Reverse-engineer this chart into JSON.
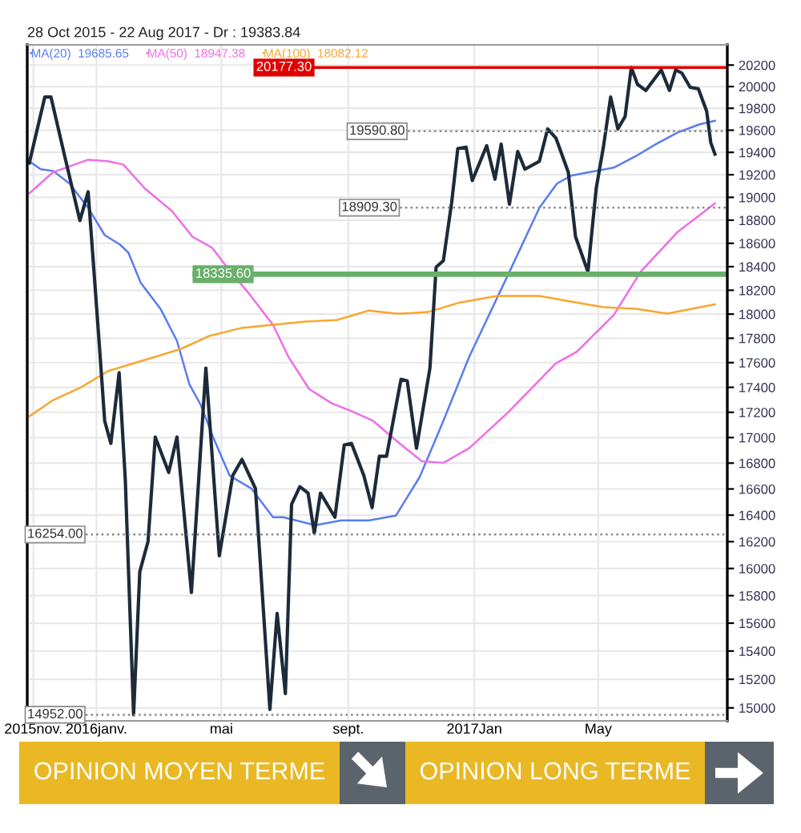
{
  "chart_data": {
    "type": "line",
    "title": "28 Oct 2015 - 22 Aug 2017 - Dr : 19383.84",
    "annotations": [
      "OPINION MOYEN TERME",
      "OPINION LONG TERME"
    ],
    "log": true,
    "grid": true,
    "legend": "top left",
    "tick_labels": "xy",
    "xlim": [
      "2015-10-26",
      "2017-09-03"
    ],
    "xticks": [
      {
        "value": "2015-11-01",
        "label": "2015nov."
      },
      {
        "value": "2016-01-01",
        "label": "2016janv."
      },
      {
        "value": "2016-05-01",
        "label": "mai"
      },
      {
        "value": "2016-09-01",
        "label": "sept."
      },
      {
        "value": "2017-01-01",
        "label": "2017Jan"
      },
      {
        "value": "2017-05-01",
        "label": "May"
      }
    ],
    "ylim": [
      14910,
      20390
    ],
    "yticks": [
      15000,
      15200,
      15400,
      15600,
      15800,
      16000,
      16200,
      16400,
      16600,
      16800,
      17000,
      17200,
      17400,
      17600,
      17800,
      18000,
      18200,
      18400,
      18600,
      18800,
      19000,
      19200,
      19400,
      19600,
      19800,
      20000,
      20200
    ],
    "ref_lines": [
      {
        "axis": "y",
        "value": 20177.3,
        "label": "20177.30",
        "color": "#e00000",
        "line_style": "solid"
      },
      {
        "axis": "y",
        "value": 19590.8,
        "label": "19590.80",
        "color": "#888888",
        "line_style": "dotted"
      },
      {
        "axis": "y",
        "value": 18909.3,
        "label": "18909.30",
        "color": "#888888",
        "line_style": "dotted"
      },
      {
        "axis": "y",
        "value": 18335.6,
        "label": "18335.60",
        "color": "#6aaf6a",
        "line_style": "solid"
      },
      {
        "axis": "y",
        "value": 16254.0,
        "label": "16254.00",
        "color": "#888888",
        "line_style": "dotted"
      },
      {
        "axis": "y",
        "value": 14952.0,
        "label": "14952.00",
        "color": "#888888",
        "line_style": "dotted"
      }
    ],
    "series": [
      {
        "color": "#1c2b3a",
        "x": [
          "2015-10-28",
          "2015-11-12",
          "2015-11-18",
          "2015-12-01",
          "2015-12-16",
          "2015-12-24",
          "2016-01-04",
          "2016-01-09",
          "2016-01-15",
          "2016-01-23",
          "2016-01-29",
          "2016-02-06",
          "2016-02-12",
          "2016-02-20",
          "2016-02-27",
          "2016-03-11",
          "2016-03-19",
          "2016-04-02",
          "2016-04-16",
          "2016-04-29",
          "2016-05-12",
          "2016-05-21",
          "2016-06-03",
          "2016-06-17",
          "2016-06-24",
          "2016-07-02",
          "2016-07-08",
          "2016-07-16",
          "2016-07-24",
          "2016-07-30",
          "2016-08-05",
          "2016-08-19",
          "2016-08-28",
          "2016-09-04",
          "2016-09-16",
          "2016-09-24",
          "2016-10-01",
          "2016-10-08",
          "2016-10-22",
          "2016-10-28",
          "2016-11-06",
          "2016-11-19",
          "2016-11-25",
          "2016-12-02",
          "2016-12-10",
          "2016-12-16",
          "2016-12-24",
          "2016-12-30",
          "2017-01-13",
          "2017-01-21",
          "2017-01-27",
          "2017-02-04",
          "2017-02-12",
          "2017-02-19",
          "2017-03-05",
          "2017-03-13",
          "2017-03-21",
          "2017-04-02",
          "2017-04-09",
          "2017-04-21",
          "2017-04-29",
          "2017-05-06",
          "2017-05-13",
          "2017-05-20",
          "2017-05-27",
          "2017-06-02",
          "2017-06-08",
          "2017-06-16",
          "2017-07-01",
          "2017-07-09",
          "2017-07-15",
          "2017-07-21",
          "2017-07-29",
          "2017-08-06",
          "2017-08-14",
          "2017-08-18",
          "2017-08-22"
        ],
        "values": [
          19305,
          19903,
          19903,
          19377,
          18797,
          19049,
          17725,
          17132,
          16954,
          17518,
          16667,
          14952,
          15976,
          16202,
          17004,
          16728,
          17004,
          15823,
          17556,
          16095,
          16703,
          16829,
          16604,
          14990,
          15671,
          15100,
          16483,
          16618,
          16568,
          16263,
          16568,
          16384,
          16942,
          16954,
          16703,
          16457,
          16853,
          16853,
          17465,
          17452,
          16916,
          17556,
          18396,
          18451,
          18952,
          19434,
          19447,
          19148,
          19460,
          19161,
          19474,
          18940,
          19408,
          19249,
          19320,
          19612,
          19529,
          19222,
          18657,
          18356,
          19077,
          19447,
          19903,
          19612,
          19724,
          20177,
          20021,
          19964,
          20155,
          19964,
          20155,
          20125,
          19993,
          19979,
          19774,
          19487,
          19384
        ]
      },
      {
        "name": "MA(20)  19685.65",
        "color": "#5a7cf0",
        "x": [
          "2015-10-28",
          "2015-11-08",
          "2015-11-20",
          "2015-12-06",
          "2015-12-24",
          "2016-01-09",
          "2016-01-24",
          "2016-02-01",
          "2016-02-13",
          "2016-03-03",
          "2016-03-19",
          "2016-03-31",
          "2016-04-11",
          "2016-04-23",
          "2016-05-09",
          "2016-05-30",
          "2016-06-20",
          "2016-06-30",
          "2016-07-31",
          "2016-08-25",
          "2016-09-21",
          "2016-10-17",
          "2016-11-09",
          "2016-12-02",
          "2016-12-27",
          "2017-02-04",
          "2017-03-05",
          "2017-03-22",
          "2017-04-05",
          "2017-04-22",
          "2017-05-16",
          "2017-06-06",
          "2017-06-26",
          "2017-07-17",
          "2017-08-07",
          "2017-08-22"
        ],
        "values": [
          19320,
          19249,
          19234,
          19121,
          18908,
          18671,
          18588,
          18519,
          18261,
          18045,
          17779,
          17426,
          17259,
          17004,
          16703,
          16604,
          16384,
          16384,
          16324,
          16360,
          16360,
          16396,
          16691,
          17132,
          17647,
          18356,
          18908,
          19121,
          19192,
          19222,
          19263,
          19364,
          19474,
          19580,
          19653,
          19686
        ]
      },
      {
        "name": "MA(50)  18947.38",
        "color": "#ee6ee8",
        "x": [
          "2015-10-28",
          "2015-11-20",
          "2015-12-24",
          "2016-01-12",
          "2016-01-27",
          "2016-02-17",
          "2016-03-14",
          "2016-04-03",
          "2016-04-22",
          "2016-05-04",
          "2016-05-27",
          "2016-06-20",
          "2016-07-05",
          "2016-07-25",
          "2016-08-16",
          "2016-09-05",
          "2016-09-25",
          "2016-10-17",
          "2016-11-11",
          "2016-12-02",
          "2016-12-27",
          "2017-02-02",
          "2017-03-21",
          "2017-04-10",
          "2017-05-16",
          "2017-06-11",
          "2017-07-17",
          "2017-08-22"
        ],
        "values": [
          19035,
          19222,
          19334,
          19320,
          19291,
          19077,
          18881,
          18657,
          18562,
          18423,
          18180,
          17911,
          17647,
          17386,
          17271,
          17206,
          17132,
          16978,
          16815,
          16802,
          16916,
          17194,
          17594,
          17687,
          17992,
          18356,
          18699,
          18947
        ]
      },
      {
        "name": "MA(100)  18082.12",
        "color": "#f8a630",
        "x": [
          "2015-10-28",
          "2015-11-20",
          "2015-12-17",
          "2016-01-12",
          "2016-02-01",
          "2016-02-27",
          "2016-03-23",
          "2016-04-19",
          "2016-05-20",
          "2016-06-20",
          "2016-07-21",
          "2016-08-21",
          "2016-09-21",
          "2016-10-17",
          "2016-10-22",
          "2016-11-17",
          "2016-12-18",
          "2017-01-23",
          "2017-03-05",
          "2017-04-10",
          "2017-05-06",
          "2017-06-06",
          "2017-07-07",
          "2017-07-31",
          "2017-08-22"
        ],
        "values": [
          17168,
          17297,
          17400,
          17530,
          17582,
          17647,
          17713,
          17818,
          17884,
          17911,
          17938,
          17951,
          18030,
          18004,
          18004,
          18017,
          18097,
          18152,
          18152,
          18097,
          18058,
          18045,
          18004,
          18045,
          18082
        ]
      }
    ]
  }
}
